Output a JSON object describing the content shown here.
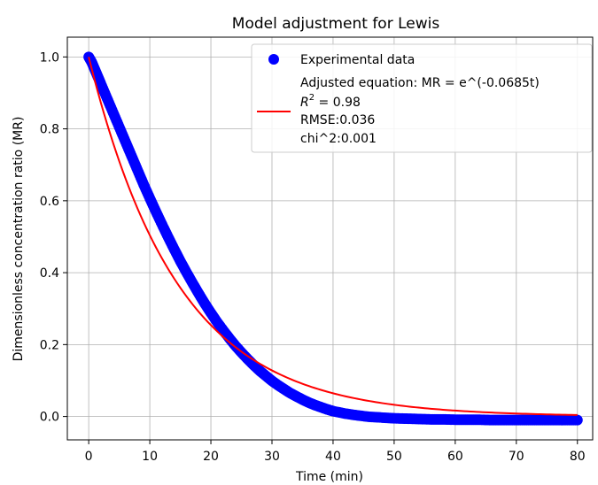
{
  "chart_data": {
    "type": "scatter",
    "title": "Model adjustment for Lewis",
    "xlabel": "Time (min)",
    "ylabel": "Dimensionless concentration ratio (MR)",
    "xlim": [
      -3.5,
      82.5
    ],
    "ylim": [
      -0.065,
      1.055
    ],
    "xticks": [
      0,
      10,
      20,
      30,
      40,
      50,
      60,
      70,
      80
    ],
    "yticks": [
      0.0,
      0.2,
      0.4,
      0.6,
      0.8,
      1.0
    ],
    "xtick_labels": [
      "0",
      "10",
      "20",
      "30",
      "40",
      "50",
      "60",
      "70",
      "80"
    ],
    "ytick_labels": [
      "0.0",
      "0.2",
      "0.4",
      "0.6",
      "0.8",
      "1.0"
    ],
    "grid": true,
    "legend_position": "top-right",
    "series": [
      {
        "name": "Experimental data",
        "kind": "scatter",
        "color": "#0000ff",
        "x": [
          0,
          0.5,
          1,
          1.5,
          2,
          3,
          4,
          5,
          6,
          7,
          8,
          9,
          10,
          11,
          12,
          13,
          14,
          15,
          16,
          17,
          18,
          19,
          20,
          21,
          22,
          23,
          24,
          25,
          26,
          27,
          28,
          29,
          30,
          31,
          32,
          33,
          34,
          35,
          36,
          37,
          38,
          39,
          40,
          42,
          44,
          46,
          48,
          50,
          52,
          54,
          56,
          58,
          60,
          62,
          64,
          66,
          68,
          70,
          72,
          74,
          76,
          78,
          80
        ],
        "y": [
          1.0,
          0.985,
          0.965,
          0.945,
          0.925,
          0.885,
          0.845,
          0.805,
          0.765,
          0.725,
          0.685,
          0.645,
          0.607,
          0.57,
          0.534,
          0.499,
          0.465,
          0.432,
          0.401,
          0.371,
          0.342,
          0.314,
          0.288,
          0.263,
          0.24,
          0.218,
          0.197,
          0.178,
          0.16,
          0.143,
          0.127,
          0.113,
          0.099,
          0.087,
          0.076,
          0.065,
          0.056,
          0.047,
          0.039,
          0.032,
          0.026,
          0.02,
          0.015,
          0.008,
          0.003,
          -0.001,
          -0.003,
          -0.005,
          -0.006,
          -0.007,
          -0.008,
          -0.008,
          -0.009,
          -0.009,
          -0.009,
          -0.01,
          -0.01,
          -0.01,
          -0.01,
          -0.01,
          -0.01,
          -0.01,
          -0.01
        ]
      },
      {
        "name": "Adjusted equation: MR = e^(-0.0685t)",
        "kind": "line",
        "color": "#ff0000",
        "k": 0.0685,
        "x_range": [
          0,
          80
        ]
      }
    ],
    "legend_entries": [
      {
        "text": "Experimental data"
      },
      {
        "text": "Adjusted equation: MR = e^(-0.0685t)"
      },
      {
        "text_r2_label": "R",
        "text_r2_sup": "2",
        "text_r2_value": " = 0.98"
      },
      {
        "text": "RMSE:0.036"
      },
      {
        "text": "chi^2:0.001"
      }
    ]
  }
}
